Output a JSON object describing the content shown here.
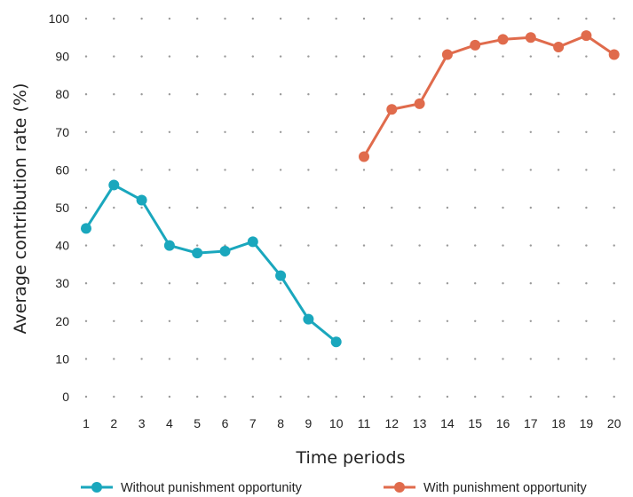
{
  "chart_data": {
    "type": "line",
    "title": "",
    "xlabel": "Time periods",
    "ylabel": "Average contribution rate (%)",
    "x": [
      1,
      2,
      3,
      4,
      5,
      6,
      7,
      8,
      9,
      10,
      11,
      12,
      13,
      14,
      15,
      16,
      17,
      18,
      19,
      20
    ],
    "xticks": [
      "1",
      "2",
      "3",
      "4",
      "5",
      "6",
      "7",
      "8",
      "9",
      "10",
      "11",
      "12",
      "13",
      "14",
      "15",
      "16",
      "17",
      "18",
      "19",
      "20"
    ],
    "yticks": [
      "0",
      "10",
      "20",
      "30",
      "40",
      "50",
      "60",
      "70",
      "80",
      "90",
      "100"
    ],
    "ylim": [
      0,
      100
    ],
    "grid": "dotted",
    "legend_position": "bottom",
    "series": [
      {
        "name": "Without punishment opportunity",
        "color": "#1aa7bd",
        "x": [
          1,
          2,
          3,
          4,
          5,
          6,
          7,
          8,
          9,
          10
        ],
        "values": [
          44.5,
          56,
          52,
          40,
          38,
          38.5,
          41,
          32,
          20.5,
          14.5
        ]
      },
      {
        "name": "With punishment opportunity",
        "color": "#e06b4c",
        "x": [
          11,
          12,
          13,
          14,
          15,
          16,
          17,
          18,
          19,
          20
        ],
        "values": [
          63.5,
          76,
          77.5,
          90.5,
          93,
          94.5,
          95,
          92.5,
          95.5,
          90.5
        ]
      }
    ]
  }
}
